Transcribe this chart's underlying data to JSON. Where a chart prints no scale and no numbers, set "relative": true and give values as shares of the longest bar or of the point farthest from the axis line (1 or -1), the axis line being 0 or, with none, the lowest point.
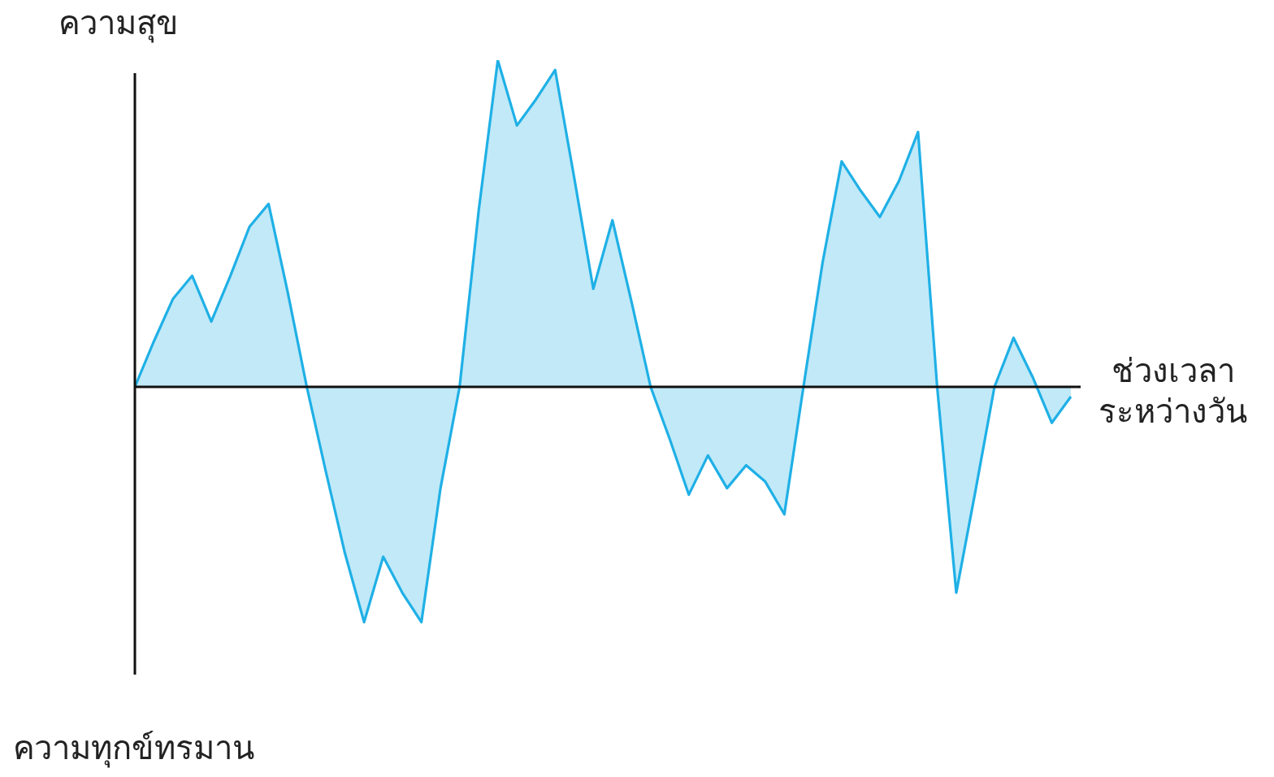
{
  "chart_data": {
    "type": "area",
    "relative": true,
    "ylabel": "ความสุข",
    "xlabel": "ช่วงเวลา ระหว่างวัน",
    "annotations": [
      "ความทุกข์ทรมาน"
    ],
    "categories": [
      null,
      null,
      null,
      null,
      null,
      null,
      null,
      null,
      null,
      null,
      null,
      null,
      null,
      null,
      null,
      null,
      null,
      null,
      null,
      null,
      null,
      null,
      null,
      null,
      null,
      null,
      null,
      null,
      null,
      null,
      null,
      null,
      null,
      null,
      null,
      null,
      null,
      null,
      null,
      null,
      null,
      null,
      null,
      null,
      null,
      null,
      null,
      null,
      null,
      null
    ],
    "series": [
      {
        "color": "#1fb0e6",
        "values": [
          0,
          0.14,
          0.27,
          0.34,
          0.2,
          0.34,
          0.49,
          0.56,
          0.29,
          0,
          -0.26,
          -0.51,
          -0.72,
          -0.52,
          -0.63,
          -0.72,
          -0.31,
          0,
          0.54,
          1,
          0.8,
          0.88,
          0.97,
          0.64,
          0.3,
          0.51,
          0.26,
          0,
          -0.16,
          -0.33,
          -0.21,
          -0.31,
          -0.24,
          -0.29,
          -0.39,
          0,
          0.38,
          0.69,
          0.6,
          0.52,
          0.63,
          0.78,
          0,
          -0.63,
          -0.32,
          0,
          0.15,
          0.03,
          -0.11,
          -0.03
        ]
      }
    ],
    "legend": false
  }
}
